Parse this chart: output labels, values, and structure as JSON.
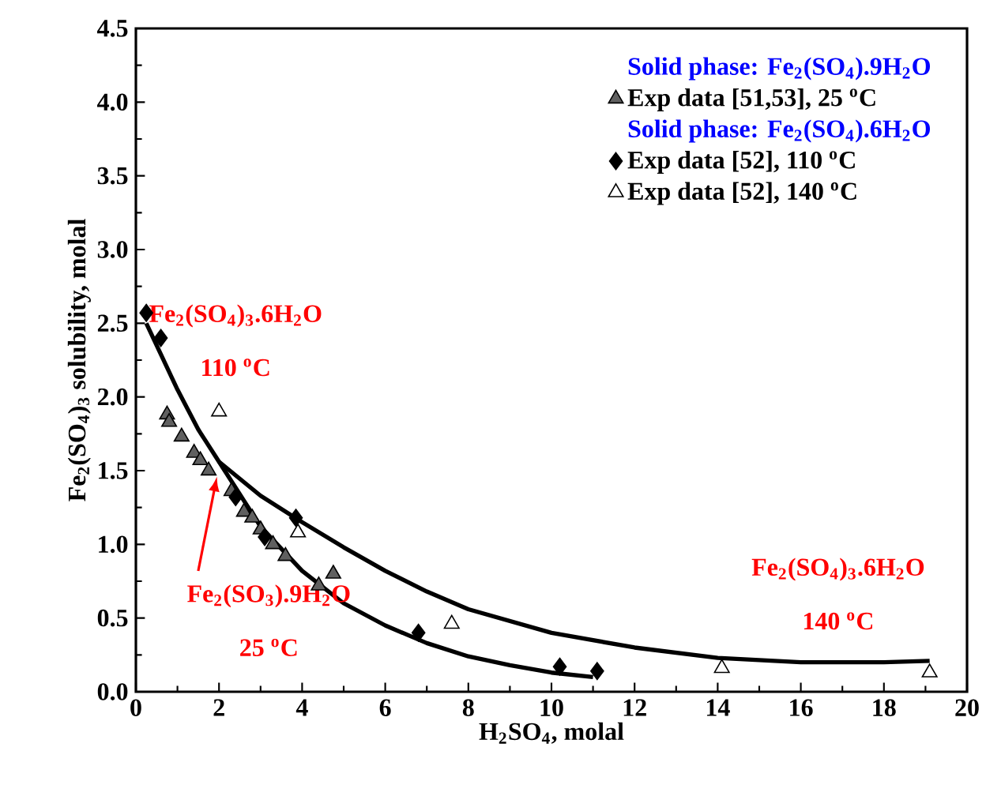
{
  "chart_data": {
    "type": "scatter",
    "xlabel": "H$_{2}$SO$_{4}$, molal",
    "ylabel": "Fe$_{2}$(SO$_{4}$)$_{3}$ solubility, molal",
    "xlim": [
      0,
      20
    ],
    "ylim": [
      0,
      4.5
    ],
    "xticks": [
      0,
      2,
      4,
      6,
      8,
      10,
      12,
      14,
      16,
      18,
      20
    ],
    "yticks": [
      {
        "value": 0,
        "label": "0.0"
      },
      {
        "value": 0.5,
        "label": "0.5"
      },
      {
        "value": 1,
        "label": "1.0"
      },
      {
        "value": 1.5,
        "label": "1.5"
      },
      {
        "value": 2,
        "label": "2.0"
      },
      {
        "value": 2.5,
        "label": "2.5"
      },
      {
        "value": 3,
        "label": "3.0"
      },
      {
        "value": 3.5,
        "label": "3.5"
      },
      {
        "value": 4,
        "label": "4.0"
      },
      {
        "value": 4.5,
        "label": "4.5"
      }
    ],
    "grid": false,
    "legend": "top right",
    "legend_title": "Solid phase: Fe$_{2}$(SO$_{4}$).9H$_{2}$O",
    "series": [
      {
        "name": "Exp data [51,53], 25 $^{o}$C",
        "type": "scatter",
        "marker": "triangle",
        "color": "#606060",
        "x": [
          0.75,
          0.8,
          1.1,
          1.4,
          1.55,
          1.75,
          2.3,
          2.4,
          2.6,
          2.8,
          3.0,
          3.3,
          3.6,
          4.4,
          4.75
        ],
        "values": [
          1.88,
          1.83,
          1.73,
          1.62,
          1.57,
          1.5,
          1.36,
          null,
          1.22,
          1.18,
          1.1,
          1.0,
          0.92,
          0.72,
          0.8
        ]
      },
      {
        "name": "Exp data [52], 110 $^{o}$C",
        "type": "scatter",
        "marker": "diamond",
        "color": "#000000",
        "x": [
          0.25,
          0.6,
          2.4,
          3.1,
          3.85,
          6.8,
          10.2,
          11.1
        ],
        "values": [
          2.57,
          2.4,
          1.32,
          1.05,
          1.18,
          0.4,
          0.17,
          0.14
        ]
      },
      {
        "name": "Exp data [52], 140 $^{o}$C",
        "type": "scatter",
        "marker": "triangle",
        "color": "#ffffff",
        "x": [
          2.0,
          3.9,
          7.6,
          14.1,
          19.1
        ],
        "values": [
          1.9,
          1.08,
          0.46,
          0.16,
          0.13
        ]
      },
      {
        "type": "line",
        "color": "#000000",
        "x": [
          0.25,
          1,
          1.5,
          2,
          3,
          4,
          5,
          6,
          7,
          8,
          10,
          12,
          14,
          16,
          18,
          19.1
        ],
        "values": [
          2.5,
          2.05,
          1.78,
          1.56,
          1.33,
          1.15,
          0.98,
          0.82,
          0.68,
          0.56,
          0.4,
          0.3,
          0.23,
          0.2,
          0.2,
          0.21
        ]
      },
      {
        "type": "line",
        "color": "#000000",
        "x": [
          2,
          3,
          4,
          5,
          6,
          7,
          8,
          9,
          10,
          11
        ],
        "values": [
          1.56,
          1.12,
          0.82,
          0.6,
          0.45,
          0.33,
          0.24,
          0.18,
          0.13,
          0.1
        ]
      }
    ],
    "annotations": [
      "Solid phase: Fe$_{2}$(SO$_{4}$).6H$_{2}$O",
      "Fe$_{2}$(SO$_{4}$)$_{3}$.6H$_{2}$O",
      "110 $^{o}$C",
      "Fe$_{2}$(SO$_{3}$).9H$_{2}$O",
      "25 $^{o}$C",
      "Fe$_{2}$(SO$_{4}$)$_{3}$.6H$_{2}$O",
      "140 $^{o}$C"
    ]
  }
}
